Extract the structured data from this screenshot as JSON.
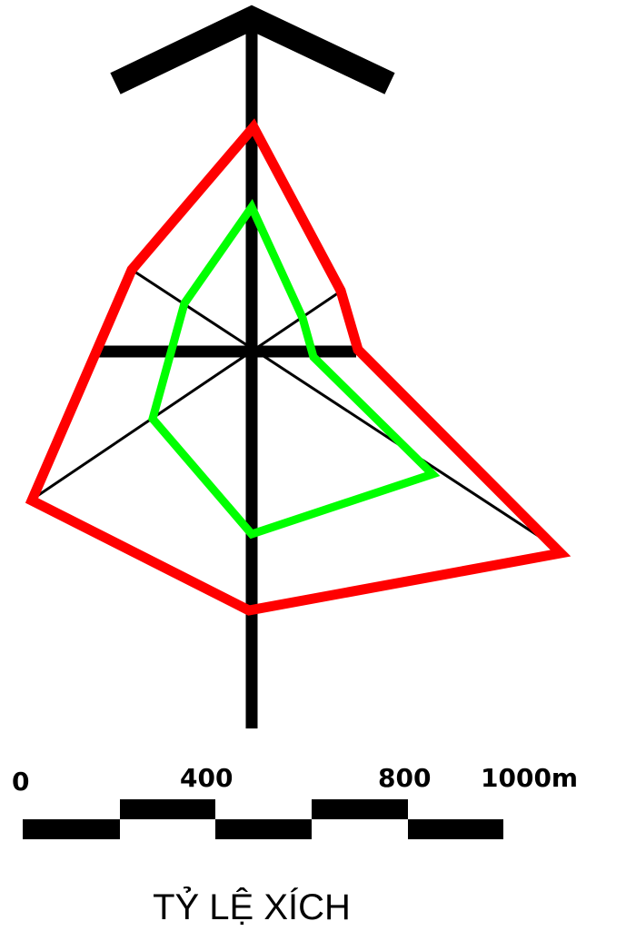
{
  "colors": {
    "axis": "#000000",
    "outer_polygon": "#ff0000",
    "inner_polygon": "#00ff00",
    "background": "#ffffff"
  },
  "north_arrow": {
    "icon": "north-arrow-icon"
  },
  "polygons": {
    "outer_label": "",
    "inner_label": ""
  },
  "scale_bar": {
    "tick_labels": [
      "0",
      "400",
      "800",
      "1000m"
    ],
    "segments": 5,
    "caption": "TỶ LỆ XÍCH"
  }
}
